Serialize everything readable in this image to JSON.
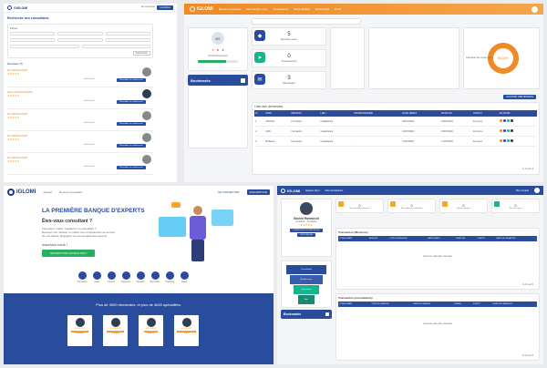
{
  "search_panel": {
    "brand": "OIGLOMI",
    "title": "Recherche des consultants",
    "login_button": "Se connecter",
    "signup_button": "Inscription",
    "filters_label": "Filtres",
    "search_button": "Rechercher",
    "results_label": "Résultats (5)",
    "consultants": [
      {
        "name": "Mr CONSULTANT",
        "button": "Demander un rendez-vous",
        "secondary": "Voir le profil"
      },
      {
        "name": "Mme CONSULTANTE",
        "button": "Demander un rendez-vous",
        "secondary": "Voir le profil"
      },
      {
        "name": "Mr CONSULTANT",
        "button": "Demander un rendez-vous",
        "secondary": "Voir le profil"
      },
      {
        "name": "Mr CONSULTANT",
        "button": "Demander un rendez-vous",
        "secondary": "Voir le profil"
      },
      {
        "name": "Mr CONSULTANT",
        "button": "Demander un rendez-vous",
        "secondary": "Voir le profil"
      }
    ]
  },
  "dashboard": {
    "brand": "IGLOMI",
    "nav": [
      "Espace consultant",
      "Mes rendez-vous",
      "Transactions",
      "Disponibilités",
      "Bookmarks",
      "Profil"
    ],
    "search_placeholder": "Rechercher",
    "profile_initials": "BS",
    "profile_role": "Profil Personnel",
    "progress": 0.7,
    "bookmarks": "Bookmarks",
    "stats": [
      {
        "value": "5",
        "label": "Rendez-vous",
        "color": "#2a4c9c",
        "icon": "tag-icon"
      },
      {
        "value": "0",
        "label": "Transactions",
        "color": "#18b48d",
        "icon": "send-icon"
      },
      {
        "value": "3",
        "label": "Messages",
        "color": "#2a4c9c",
        "icon": "message-icon"
      }
    ],
    "gauge_value": "50.00%",
    "gauge_caption": "Calendrier des rendez-vous",
    "add_button": "AJOUTER UNE MISSION",
    "table_title": "Liste des demandes",
    "table_headers": [
      "N°",
      "NOM",
      "MISSION",
      "LIEU",
      "PROFESSIONNE",
      "DATE DEBUT",
      "DATE FIN",
      "STATUT",
      "ACTIONS"
    ],
    "rows": [
      {
        "n": "1",
        "nom": "CDC&N",
        "mission": "Formation",
        "lieu": "Casablanca",
        "pro": "-",
        "debut": "05/07/2022",
        "fin": "12/07/2022",
        "statut": "En cours"
      },
      {
        "n": "2",
        "nom": "CDC",
        "mission": "Formation",
        "lieu": "Casablanca",
        "pro": "-",
        "debut": "10/07/2022",
        "fin": "15/07/2022",
        "statut": "En cours"
      },
      {
        "n": "3",
        "nom": "Bellevue",
        "mission": "Formation",
        "lieu": "Casablanca",
        "pro": "-",
        "debut": "11/07/2022",
        "fin": "17/07/2022",
        "statut": "En cours"
      }
    ],
    "pagination": "1-3 sur 3"
  },
  "landing": {
    "brand": "IGLOMI",
    "nav": [
      "Accueil",
      "Devenir consultant"
    ],
    "login": "SE CONNECTER",
    "signup": "INSCRIPTION",
    "headline": "LA PREMIÈRE BANQUE D'EXPERTS",
    "subheadline": "Êtes-vous consultant ?",
    "paragraph_lines": [
      "Formateur, coach, freelancer ou consultant ?",
      "Recevez vos mission et mettez vos compétences au service",
      "de nos clients. Rejoignez la communauté des experts."
    ],
    "cta_label": "Inscrivez-vous !",
    "cta_button": "INSCRIPTION CONSULTANT",
    "categories": [
      "Formation",
      "Audit",
      "Conseil",
      "Freelance",
      "Vacation",
      "Séminaire",
      "Coaching",
      "Panel"
    ],
    "banner_text": "Plus de 3000 demandes, et plus de 4600 spécialités.",
    "banner_cards": [
      {
        "label": "M. EXPERTS REDIN",
        "sub": "Formateur"
      },
      {
        "label": "M. EXPERTS SIMON",
        "sub": "Consultant"
      },
      {
        "label": "M. INGENIEURS",
        "sub": "Auditeur"
      },
      {
        "label": "MR. PROFESSIONNEL",
        "sub": "Coach"
      }
    ]
  },
  "profile_dashboard": {
    "brand": "IGLOMI",
    "nav": [
      "Espace client",
      "Mes transactions"
    ],
    "user_name": "Mon compte",
    "consultant_name": "Bachid Hamma ali",
    "consultant_role": "Formation · Freelance",
    "profile_button": "COMPLETER VOTRE PROFIL",
    "history_button": "HISTORIQUE",
    "funnel": [
      "Consultation",
      "Rendez-vous",
      "Transaction",
      "Avis"
    ],
    "bookmarks": "Bookmarks",
    "stats": [
      {
        "value": "0",
        "label": "Nb. consultants réservés"
      },
      {
        "value": "0",
        "label": "Nb. rendez-vous effectués"
      },
      {
        "value": "0",
        "label": "Nb. transactions"
      },
      {
        "value": "0",
        "label": "Nb. avis laissés"
      }
    ],
    "transactions_title": "Transaction (Missions)",
    "transactions_headers": [
      "CONSULTANT",
      "MISSION",
      "TYPE DE MISSION",
      "DATE DEBUT",
      "DATE FIN",
      "STATUT",
      "DATE DE CREATION"
    ],
    "empty_text": "Aucune donnée trouvée",
    "consultations_title": "Transaction (consultation)",
    "consultations_headers": [
      "CONSULTANT",
      "TYPE DE SERVICE",
      "DATE DE SEANCE",
      "DUREE",
      "STATUT",
      "DATE DE CREATION"
    ],
    "pagination": "0-0 sur 0"
  }
}
